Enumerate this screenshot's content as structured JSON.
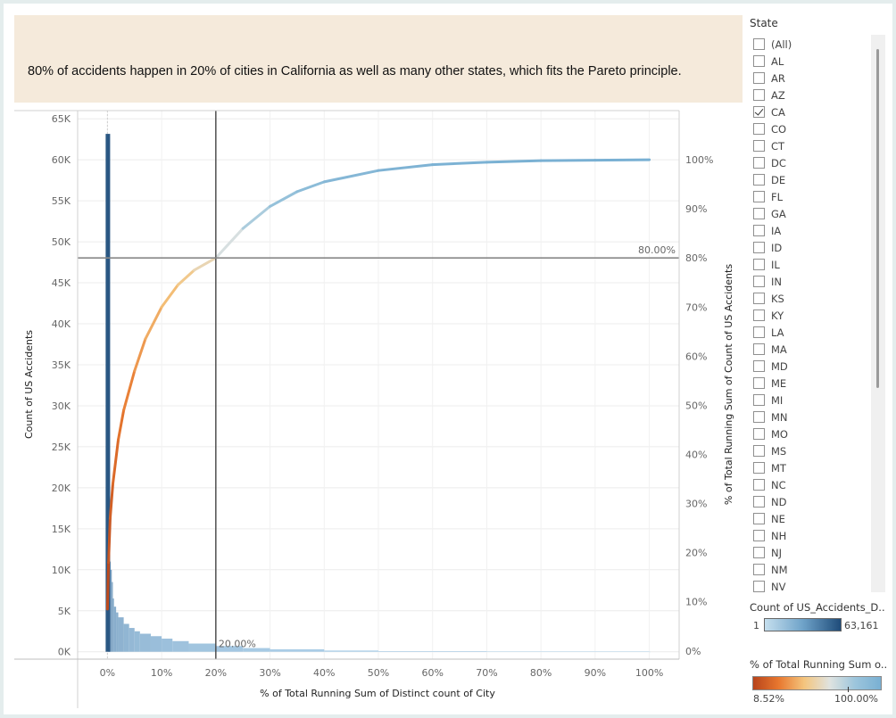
{
  "caption": "80% of accidents happen in 20% of cities in California as well as many other states, which fits the Pareto principle.",
  "filter": {
    "title": "State",
    "items": [
      {
        "label": "(All)",
        "checked": false
      },
      {
        "label": "AL",
        "checked": false
      },
      {
        "label": "AR",
        "checked": false
      },
      {
        "label": "AZ",
        "checked": false
      },
      {
        "label": "CA",
        "checked": true
      },
      {
        "label": "CO",
        "checked": false
      },
      {
        "label": "CT",
        "checked": false
      },
      {
        "label": "DC",
        "checked": false
      },
      {
        "label": "DE",
        "checked": false
      },
      {
        "label": "FL",
        "checked": false
      },
      {
        "label": "GA",
        "checked": false
      },
      {
        "label": "IA",
        "checked": false
      },
      {
        "label": "ID",
        "checked": false
      },
      {
        "label": "IL",
        "checked": false
      },
      {
        "label": "IN",
        "checked": false
      },
      {
        "label": "KS",
        "checked": false
      },
      {
        "label": "KY",
        "checked": false
      },
      {
        "label": "LA",
        "checked": false
      },
      {
        "label": "MA",
        "checked": false
      },
      {
        "label": "MD",
        "checked": false
      },
      {
        "label": "ME",
        "checked": false
      },
      {
        "label": "MI",
        "checked": false
      },
      {
        "label": "MN",
        "checked": false
      },
      {
        "label": "MO",
        "checked": false
      },
      {
        "label": "MS",
        "checked": false
      },
      {
        "label": "MT",
        "checked": false
      },
      {
        "label": "NC",
        "checked": false
      },
      {
        "label": "ND",
        "checked": false
      },
      {
        "label": "NE",
        "checked": false
      },
      {
        "label": "NH",
        "checked": false
      },
      {
        "label": "NJ",
        "checked": false
      },
      {
        "label": "NM",
        "checked": false
      },
      {
        "label": "NV",
        "checked": false
      }
    ]
  },
  "legend_count": {
    "title": "Count of US_Accidents_D..",
    "min": "1",
    "max": "63,161",
    "colors": [
      "#c5dfee",
      "#1f4c7a"
    ]
  },
  "legend_pct": {
    "title": "% of Total Running Sum o..",
    "min": "8.52%",
    "max": "100.00%",
    "colors": [
      "#b8441b",
      "#f4c57e",
      "#79b0d3"
    ]
  },
  "chart_data": {
    "type": "bar",
    "xlabel": "% of Total Running Sum of Distinct count of City",
    "ylabel": "Count of US Accidents",
    "y2label": "% of Total Running Sum of Count of US Accidents",
    "xlim": [
      -0.055,
      1.055
    ],
    "ylim": [
      -900,
      66000
    ],
    "y2lim": [
      -0.0167,
      1.1
    ],
    "x_ticks": [
      "0%",
      "10%",
      "20%",
      "30%",
      "40%",
      "50%",
      "60%",
      "70%",
      "80%",
      "90%",
      "100%"
    ],
    "y_ticks": [
      "0K",
      "5K",
      "10K",
      "15K",
      "20K",
      "25K",
      "30K",
      "35K",
      "40K",
      "45K",
      "50K",
      "55K",
      "60K",
      "65K"
    ],
    "y2_ticks": [
      "0%",
      "10%",
      "20%",
      "30%",
      "40%",
      "50%",
      "60%",
      "70%",
      "80%",
      "90%",
      "100%"
    ],
    "bars": [
      {
        "x": 0.0,
        "y": 63161
      },
      {
        "x": 0.002,
        "y": 26000
      },
      {
        "x": 0.004,
        "y": 11000
      },
      {
        "x": 0.006,
        "y": 10000
      },
      {
        "x": 0.008,
        "y": 8500
      },
      {
        "x": 0.01,
        "y": 6500
      },
      {
        "x": 0.012,
        "y": 5500
      },
      {
        "x": 0.016,
        "y": 4800
      },
      {
        "x": 0.02,
        "y": 4200
      },
      {
        "x": 0.03,
        "y": 3400
      },
      {
        "x": 0.04,
        "y": 2900
      },
      {
        "x": 0.05,
        "y": 2500
      },
      {
        "x": 0.06,
        "y": 2200
      },
      {
        "x": 0.08,
        "y": 1900
      },
      {
        "x": 0.1,
        "y": 1600
      },
      {
        "x": 0.12,
        "y": 1300
      },
      {
        "x": 0.15,
        "y": 1000
      },
      {
        "x": 0.2,
        "y": 700
      },
      {
        "x": 0.25,
        "y": 450
      },
      {
        "x": 0.3,
        "y": 300
      },
      {
        "x": 0.4,
        "y": 150
      },
      {
        "x": 0.5,
        "y": 80
      },
      {
        "x": 0.7,
        "y": 25
      },
      {
        "x": 1.0,
        "y": 1
      }
    ],
    "cumulative_line": {
      "x": [
        0.0,
        0.002,
        0.005,
        0.01,
        0.02,
        0.03,
        0.05,
        0.07,
        0.1,
        0.13,
        0.16,
        0.2,
        0.25,
        0.3,
        0.35,
        0.4,
        0.5,
        0.6,
        0.7,
        0.8,
        0.9,
        1.0
      ],
      "y": [
        0.0852,
        0.18,
        0.27,
        0.34,
        0.43,
        0.49,
        0.57,
        0.635,
        0.7,
        0.745,
        0.775,
        0.8,
        0.86,
        0.905,
        0.935,
        0.955,
        0.978,
        0.99,
        0.995,
        0.998,
        0.999,
        1.0
      ]
    },
    "reference_lines": {
      "x": 0.2,
      "x_label": "20.00%",
      "y2": 0.8,
      "y2_label": "80.00%"
    }
  }
}
